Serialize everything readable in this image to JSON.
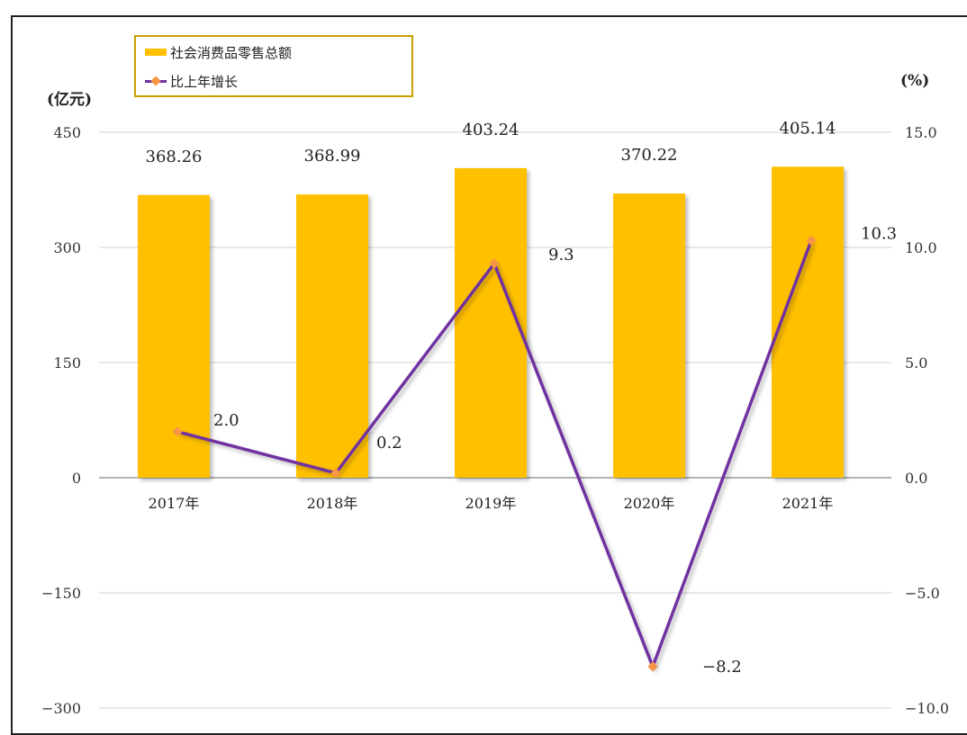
{
  "chart_data": {
    "type": "bar",
    "categories": [
      "2017年",
      "2018年",
      "2019年",
      "2020年",
      "2021年"
    ],
    "series": [
      {
        "name": "社会消费品零售总额",
        "type": "bar",
        "axis": "left",
        "values": [
          368.26,
          368.99,
          403.24,
          370.22,
          405.14
        ],
        "labels": [
          "368.26",
          "368.99",
          "403.24",
          "370.22",
          "405.14"
        ],
        "color": "#FFC000"
      },
      {
        "name": "比上年增长",
        "type": "line",
        "axis": "right",
        "values": [
          2.0,
          0.2,
          9.3,
          -8.2,
          10.3
        ],
        "labels": [
          "2.0",
          "0.2",
          "9.3",
          "−8.2",
          "10.3"
        ],
        "color": "#7030A0",
        "marker_color": "#F79646"
      }
    ],
    "left_axis": {
      "unit": "(亿元)",
      "ylim": [
        -300,
        450
      ],
      "ticks": [
        450,
        300,
        150,
        0,
        -150,
        -300
      ],
      "tick_labels": [
        "450",
        "300",
        "150",
        "0",
        "−150",
        "−300"
      ]
    },
    "right_axis": {
      "unit": "(%)",
      "ylim": [
        -10,
        15
      ],
      "ticks": [
        15,
        10,
        5,
        0,
        -5,
        -10
      ],
      "tick_labels": [
        "15.0",
        "10.0",
        "5.0",
        "0.0",
        "−5.0",
        "−10.0"
      ]
    },
    "grid": true,
    "legend_position": "top-left"
  }
}
